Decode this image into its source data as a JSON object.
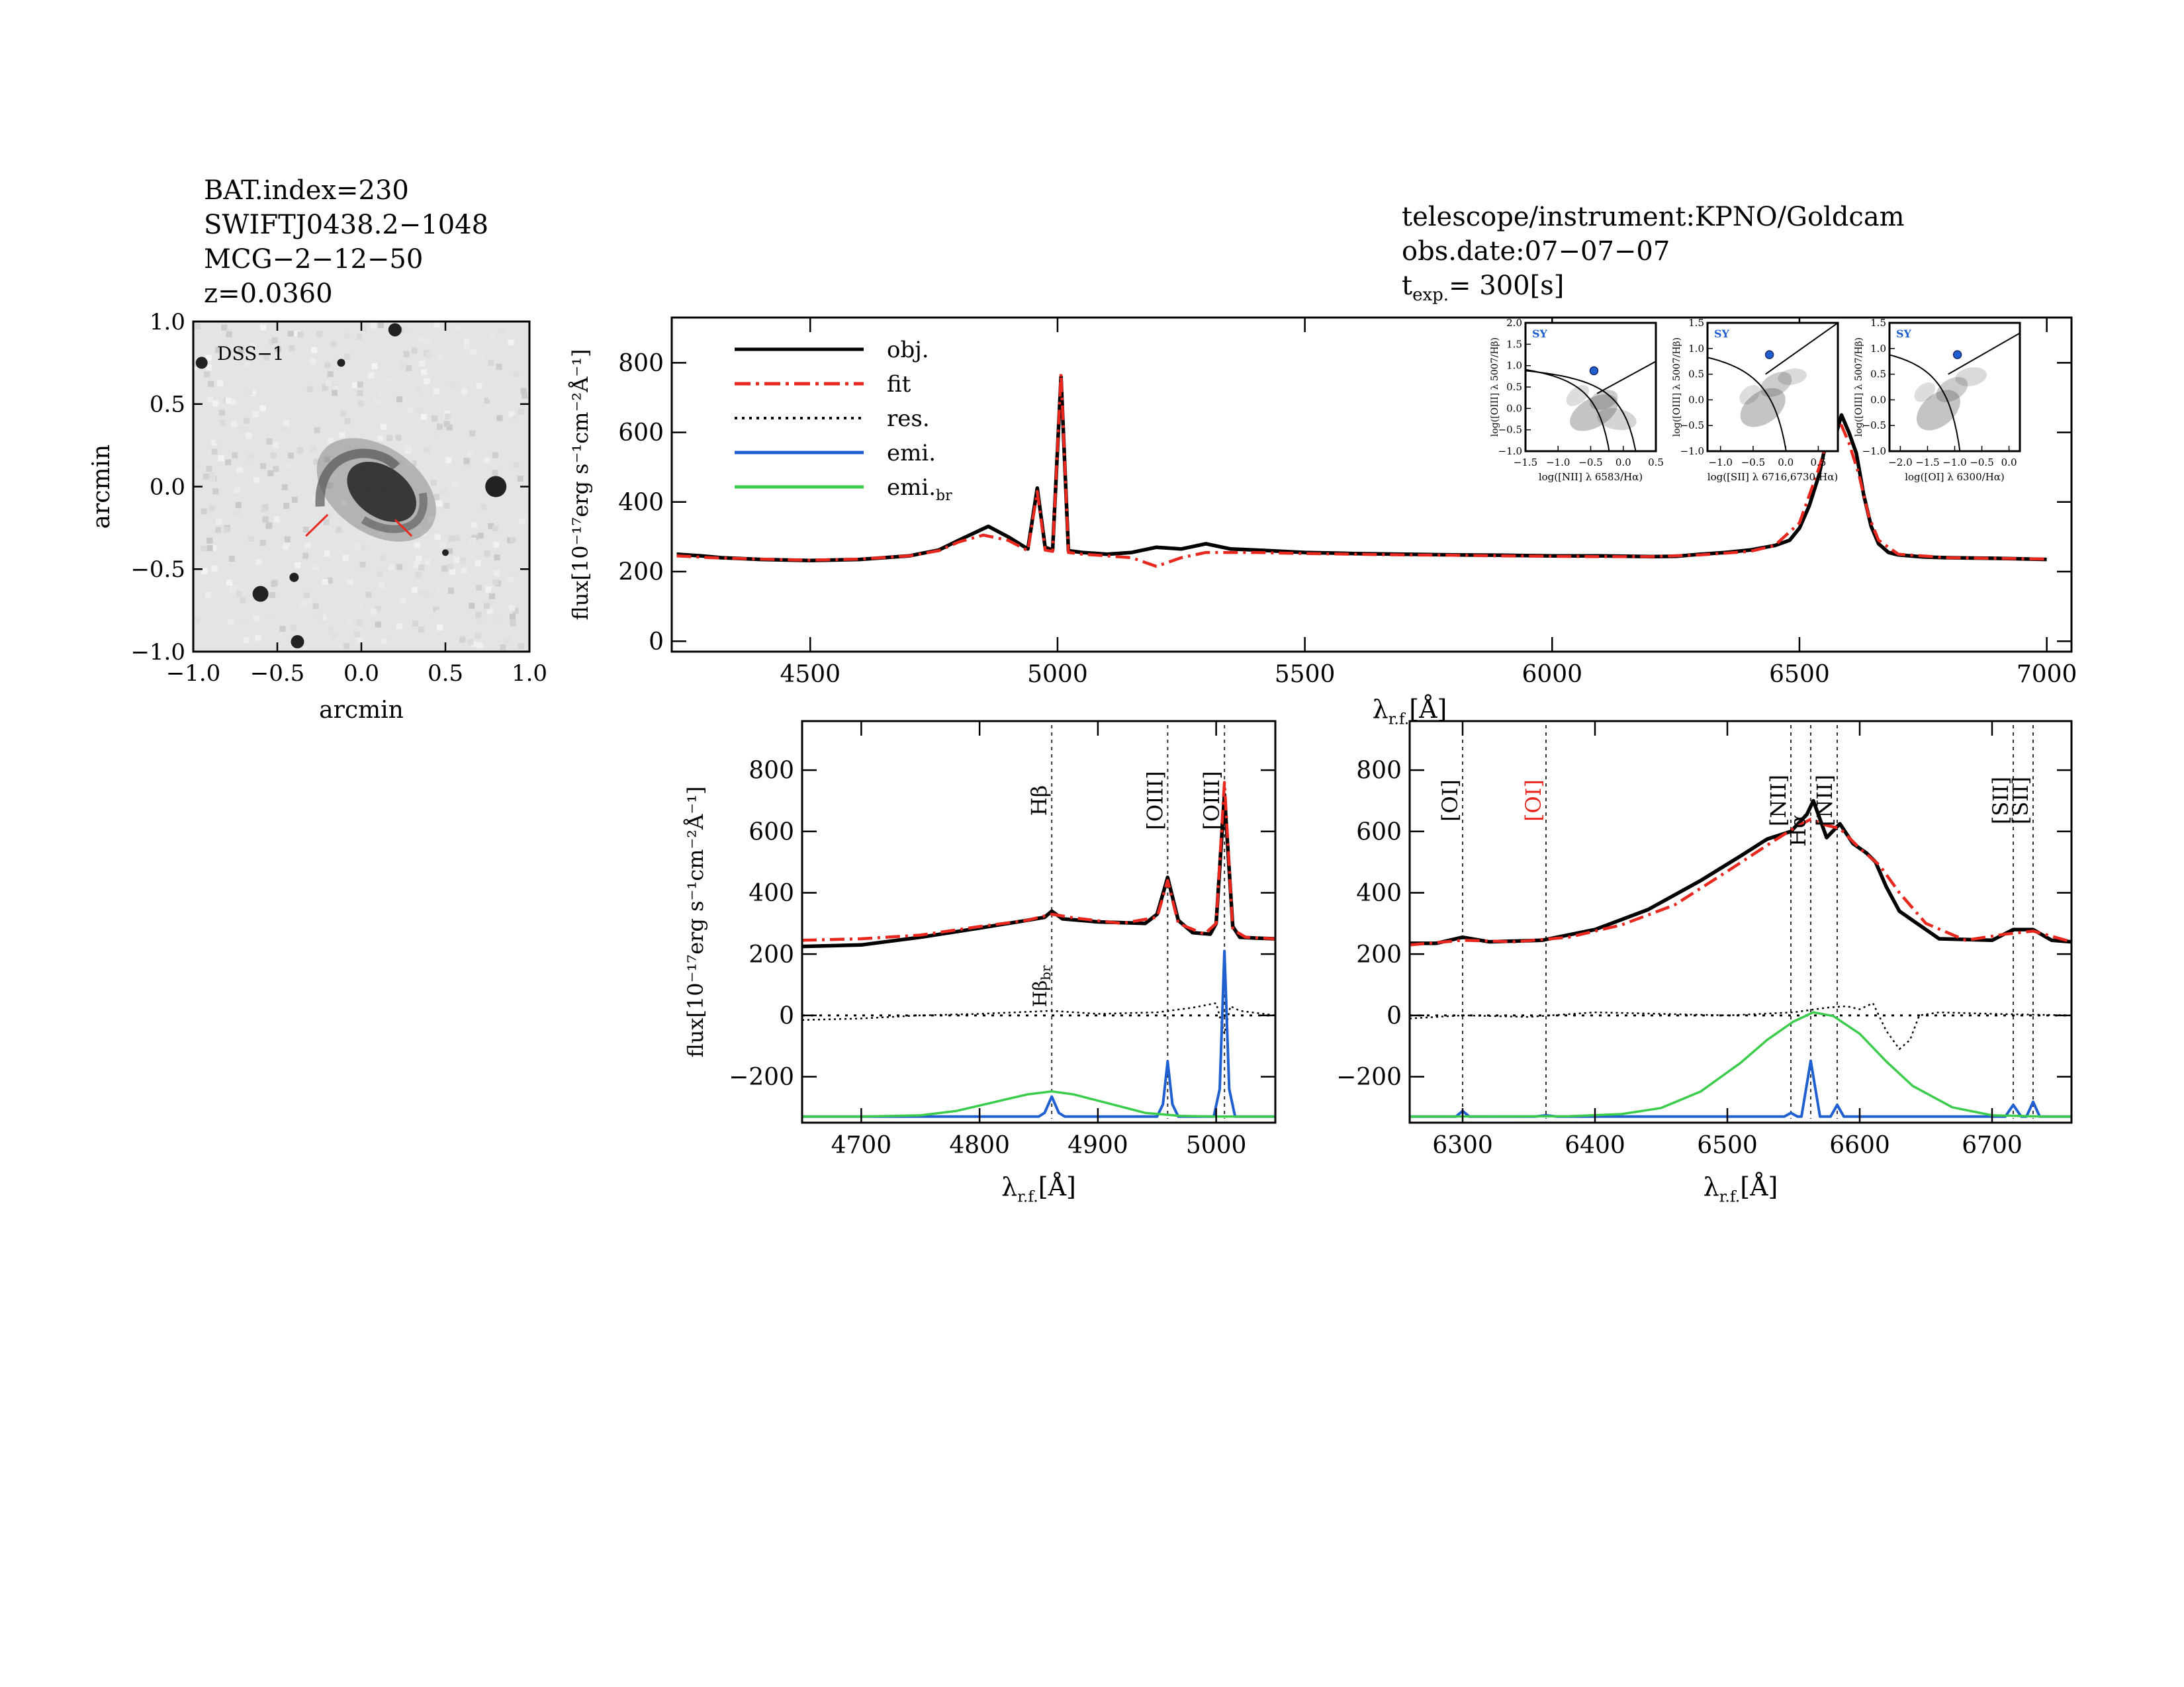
{
  "header_left": {
    "line1": "BAT.index=230",
    "line2": "SWIFTJ0438.2−1048",
    "line3": "MCG−2−12−50",
    "line4": "z=0.0360"
  },
  "header_right": {
    "line1": "telescope/instrument:KPNO/Goldcam",
    "line2": "obs.date:07−07−07",
    "line3_prefix": "t",
    "line3_sub": "exp.",
    "line3_value": "= 300[s]"
  },
  "colors": {
    "obj": "#000000",
    "fit": "#e8281e",
    "res": "#000000",
    "emi": "#1f5fd0",
    "emi_br": "#3ccc4c",
    "lines": "#333333"
  },
  "chart_data": [
    {
      "id": "image",
      "type": "heatmap",
      "label": "DSS−1",
      "xlabel": "arcmin",
      "ylabel": "arcmin",
      "xlim": [
        -1.0,
        1.0
      ],
      "ylim": [
        -1.0,
        1.0
      ],
      "xticks": [
        -1.0,
        -0.5,
        0.0,
        0.5,
        1.0
      ],
      "yticks": [
        -1.0,
        -0.5,
        0.0,
        0.5,
        1.0
      ],
      "xtick_labels": [
        "−1.0",
        "−0.5",
        "0.0",
        "0.5",
        "1.0"
      ],
      "ytick_labels": [
        "−1.0",
        "−0.5",
        "0.0",
        "0.5",
        "1.0"
      ]
    },
    {
      "id": "main",
      "type": "line",
      "xlabel_main": "λ",
      "xlabel_sub": "r.f.",
      "xlabel_unit": "[Å]",
      "ylabel": "flux[10⁻¹⁷erg s⁻¹cm⁻²Å⁻¹]",
      "xlim": [
        4220,
        7050
      ],
      "ylim": [
        -30,
        930
      ],
      "xticks": [
        4500,
        5000,
        5500,
        6000,
        6500,
        7000
      ],
      "yticks": [
        0,
        200,
        400,
        600,
        800
      ],
      "legend": {
        "placement": "top-left",
        "entries": [
          {
            "label": "obj.",
            "style": "solid",
            "color": "#000000"
          },
          {
            "label": "fit",
            "style": "dashdot",
            "color": "#e8281e"
          },
          {
            "label": "res.",
            "style": "dotted",
            "color": "#000000"
          },
          {
            "label": "emi.",
            "style": "solid",
            "color": "#1f5fd0"
          },
          {
            "label": "emi.",
            "label_sub": "br",
            "style": "solid",
            "color": "#3ccc4c"
          }
        ]
      },
      "series": [
        {
          "name": "obj.",
          "x": [
            4230,
            4280,
            4320,
            4400,
            4500,
            4600,
            4700,
            4760,
            4800,
            4830,
            4860,
            4900,
            4940,
            4959,
            4975,
            4990,
            5007,
            5022,
            5050,
            5100,
            5150,
            5200,
            5250,
            5300,
            5350,
            5400,
            5500,
            5600,
            5700,
            5800,
            5900,
            6000,
            6100,
            6200,
            6250,
            6300,
            6350,
            6400,
            6450,
            6480,
            6500,
            6520,
            6540,
            6555,
            6563,
            6575,
            6585,
            6600,
            6615,
            6630,
            6645,
            6660,
            6680,
            6700,
            6750,
            6800,
            6900,
            7000
          ],
          "y": [
            250,
            245,
            240,
            235,
            232,
            235,
            245,
            262,
            290,
            310,
            330,
            300,
            265,
            440,
            270,
            262,
            760,
            260,
            255,
            250,
            255,
            270,
            265,
            280,
            265,
            262,
            255,
            252,
            250,
            248,
            247,
            245,
            245,
            243,
            244,
            250,
            255,
            262,
            275,
            290,
            325,
            390,
            480,
            580,
            620,
            600,
            650,
            600,
            540,
            420,
            330,
            280,
            255,
            248,
            242,
            240,
            238,
            235
          ]
        },
        {
          "name": "fit",
          "x": [
            4230,
            4300,
            4400,
            4500,
            4600,
            4700,
            4760,
            4800,
            4850,
            4900,
            4940,
            4959,
            4975,
            4990,
            5007,
            5022,
            5050,
            5100,
            5150,
            5200,
            5250,
            5300,
            5400,
            5500,
            5600,
            5700,
            5800,
            5900,
            6000,
            6100,
            6200,
            6300,
            6400,
            6450,
            6500,
            6540,
            6563,
            6585,
            6600,
            6620,
            6640,
            6660,
            6700,
            6800,
            6900,
            7000
          ],
          "y": [
            245,
            240,
            236,
            233,
            236,
            245,
            260,
            285,
            305,
            290,
            260,
            430,
            262,
            258,
            770,
            255,
            250,
            245,
            240,
            215,
            240,
            255,
            255,
            252,
            250,
            248,
            247,
            245,
            244,
            243,
            243,
            248,
            258,
            275,
            340,
            500,
            610,
            620,
            570,
            480,
            360,
            290,
            250,
            240,
            238,
            236
          ]
        }
      ]
    },
    {
      "id": "hbeta",
      "type": "line",
      "xlabel_main": "λ",
      "xlabel_sub": "r.f.",
      "xlabel_unit": "[Å]",
      "ylabel": "flux[10⁻¹⁷erg s⁻¹cm⁻²Å⁻¹]",
      "xlim": [
        4650,
        5050
      ],
      "ylim": [
        -350,
        960
      ],
      "xticks": [
        4700,
        4800,
        4900,
        5000
      ],
      "yticks": [
        -200,
        0,
        200,
        400,
        600,
        800
      ],
      "line_markers": [
        {
          "x": 4861,
          "label": "Hβ",
          "color": "#000000"
        },
        {
          "x": 4959,
          "label": "[OIII]",
          "color": "#000000"
        },
        {
          "x": 5007,
          "label": "[OIII]",
          "color": "#000000"
        }
      ],
      "annotation": {
        "main": "Hβ",
        "sub": "br",
        "x": 4861,
        "y": 95
      },
      "series": [
        {
          "name": "obj.",
          "x": [
            4650,
            4700,
            4750,
            4800,
            4840,
            4855,
            4861,
            4870,
            4900,
            4940,
            4950,
            4959,
            4968,
            4980,
            4995,
            5000,
            5007,
            5014,
            5020,
            5035,
            5050
          ],
          "y": [
            225,
            230,
            255,
            285,
            310,
            320,
            340,
            315,
            305,
            300,
            330,
            450,
            310,
            270,
            265,
            300,
            720,
            290,
            255,
            252,
            250
          ]
        },
        {
          "name": "fit",
          "x": [
            4650,
            4700,
            4750,
            4800,
            4840,
            4861,
            4880,
            4920,
            4950,
            4959,
            4968,
            4990,
            5000,
            5007,
            5014,
            5025,
            5050
          ],
          "y": [
            245,
            250,
            262,
            290,
            310,
            330,
            318,
            300,
            320,
            440,
            300,
            265,
            300,
            760,
            280,
            255,
            250
          ]
        },
        {
          "name": "res.",
          "x": [
            4650,
            4700,
            4750,
            4800,
            4861,
            4900,
            4950,
            4980,
            5000,
            5007,
            5012,
            5020,
            5050
          ],
          "y": [
            -15,
            -10,
            0,
            5,
            15,
            5,
            10,
            25,
            40,
            -60,
            30,
            15,
            0
          ]
        },
        {
          "name": "emi.",
          "x": [
            4650,
            4850,
            4855,
            4861,
            4867,
            4872,
            4950,
            4955,
            4959,
            4963,
            4968,
            4998,
            5003,
            5007,
            5011,
            5016,
            5050
          ],
          "y": [
            -330,
            -330,
            -318,
            -265,
            -318,
            -330,
            -330,
            -290,
            -150,
            -290,
            -330,
            -330,
            -240,
            210,
            -240,
            -330,
            -330
          ]
        },
        {
          "name": "emi.br",
          "x": [
            4650,
            4700,
            4750,
            4780,
            4810,
            4840,
            4861,
            4880,
            4910,
            4940,
            4970,
            5000,
            5050
          ],
          "y": [
            -330,
            -330,
            -326,
            -312,
            -285,
            -258,
            -248,
            -258,
            -288,
            -318,
            -328,
            -330,
            -330
          ]
        }
      ]
    },
    {
      "id": "halpha",
      "type": "line",
      "xlabel_main": "λ",
      "xlabel_sub": "r.f.",
      "xlabel_unit": "[Å]",
      "xlim": [
        6260,
        6760
      ],
      "ylim": [
        -350,
        960
      ],
      "xticks": [
        6300,
        6400,
        6500,
        6600,
        6700
      ],
      "yticks": [
        -200,
        0,
        200,
        400,
        600,
        800
      ],
      "line_markers": [
        {
          "x": 6300,
          "label": "[OI]",
          "color": "#000000"
        },
        {
          "x": 6363,
          "label": "[OI]",
          "color": "#e8281e"
        },
        {
          "x": 6548,
          "label": "[NII]",
          "color": "#000000"
        },
        {
          "x": 6563,
          "label": "Hα",
          "color": "#000000"
        },
        {
          "x": 6583,
          "label": "[NII]",
          "color": "#000000"
        },
        {
          "x": 6716,
          "label": "[SII]",
          "color": "#000000"
        },
        {
          "x": 6731,
          "label": "[SII]",
          "color": "#000000"
        }
      ],
      "series": [
        {
          "name": "obj.",
          "x": [
            6260,
            6280,
            6300,
            6320,
            6360,
            6400,
            6440,
            6480,
            6510,
            6530,
            6548,
            6560,
            6565,
            6575,
            6585,
            6595,
            6605,
            6612,
            6620,
            6630,
            6640,
            6660,
            6700,
            6716,
            6731,
            6745,
            6760
          ],
          "y": [
            235,
            235,
            255,
            240,
            245,
            280,
            345,
            440,
            520,
            575,
            600,
            655,
            700,
            580,
            625,
            560,
            530,
            500,
            420,
            340,
            310,
            250,
            245,
            280,
            280,
            245,
            240
          ]
        },
        {
          "name": "fit",
          "x": [
            6260,
            6300,
            6340,
            6380,
            6420,
            6460,
            6500,
            6530,
            6550,
            6563,
            6575,
            6585,
            6600,
            6615,
            6630,
            6650,
            6680,
            6710,
            6731,
            6760
          ],
          "y": [
            230,
            245,
            240,
            255,
            295,
            360,
            470,
            555,
            610,
            640,
            620,
            610,
            545,
            490,
            400,
            300,
            245,
            265,
            275,
            240
          ]
        },
        {
          "name": "res.",
          "x": [
            6260,
            6300,
            6350,
            6400,
            6450,
            6500,
            6550,
            6575,
            6590,
            6600,
            6610,
            6620,
            6630,
            6638,
            6645,
            6660,
            6700,
            6760
          ],
          "y": [
            -10,
            0,
            -5,
            10,
            5,
            0,
            10,
            25,
            30,
            20,
            40,
            -50,
            -110,
            -80,
            0,
            10,
            5,
            0
          ]
        },
        {
          "name": "emi.",
          "x": [
            6260,
            6295,
            6300,
            6305,
            6355,
            6363,
            6371,
            6543,
            6548,
            6553,
            6556,
            6563,
            6570,
            6578,
            6583,
            6588,
            6710,
            6716,
            6722,
            6726,
            6731,
            6736,
            6760
          ],
          "y": [
            -330,
            -330,
            -312,
            -330,
            -330,
            -326,
            -330,
            -330,
            -318,
            -330,
            -330,
            -148,
            -330,
            -330,
            -292,
            -330,
            -330,
            -292,
            -330,
            -330,
            -282,
            -330,
            -330
          ]
        },
        {
          "name": "emi.br",
          "x": [
            6260,
            6380,
            6420,
            6450,
            6480,
            6510,
            6530,
            6550,
            6565,
            6580,
            6600,
            6620,
            6640,
            6670,
            6700,
            6740,
            6760
          ],
          "y": [
            -330,
            -329,
            -322,
            -302,
            -248,
            -155,
            -80,
            -20,
            10,
            -2,
            -60,
            -150,
            -230,
            -300,
            -326,
            -330,
            -330
          ]
        }
      ]
    },
    {
      "id": "bpt_nii",
      "type": "scatter",
      "tag": "SY",
      "xlabel": "log([NII] λ 6583/Hα)",
      "ylabel": "log([OIII] λ 5007/Hβ)",
      "xlim": [
        -1.5,
        0.5
      ],
      "ylim": [
        -1.0,
        2.0
      ],
      "xticks": [
        -1.5,
        -1.0,
        -0.5,
        0.0,
        0.5
      ],
      "yticks": [
        -1.0,
        -0.5,
        0.0,
        0.5,
        1.0,
        1.5,
        2.0
      ],
      "xtick_labels": [
        "−1.5",
        "−1.0",
        "−0.5",
        "0.0",
        "0.5"
      ],
      "ytick_labels": [
        "−1.0",
        "−0.5",
        "0.0",
        "0.5",
        "1.0",
        "1.5",
        "2.0"
      ],
      "points": [
        {
          "x": -0.45,
          "y": 0.88
        }
      ]
    },
    {
      "id": "bpt_sii",
      "type": "scatter",
      "tag": "SY",
      "xlabel": "log([SII] λ 6716,6730/Hα)",
      "ylabel": "log([OIII] λ 5007/Hβ)",
      "xlim": [
        -1.2,
        0.8
      ],
      "ylim": [
        -1.0,
        1.5
      ],
      "xticks": [
        -1.0,
        -0.5,
        0.0,
        0.5
      ],
      "yticks": [
        -1.0,
        -0.5,
        0.0,
        0.5,
        1.0,
        1.5
      ],
      "xtick_labels": [
        "−1.0",
        "−0.5",
        "0.0",
        "0.5"
      ],
      "ytick_labels": [
        "−1.0",
        "−0.5",
        "0.0",
        "0.5",
        "1.0",
        "1.5"
      ],
      "points": [
        {
          "x": -0.25,
          "y": 0.88
        }
      ]
    },
    {
      "id": "bpt_oi",
      "type": "scatter",
      "tag": "SY",
      "xlabel": "log([OI] λ 6300/Hα)",
      "ylabel": "log([OIII] λ 5007/Hβ)",
      "xlim": [
        -2.2,
        0.2
      ],
      "ylim": [
        -1.0,
        1.5
      ],
      "xticks": [
        -2.0,
        -1.5,
        -1.0,
        -0.5,
        0.0
      ],
      "yticks": [
        -1.0,
        -0.5,
        0.0,
        0.5,
        1.0,
        1.5
      ],
      "xtick_labels": [
        "−2.0",
        "−1.5",
        "−1.0",
        "−0.5",
        "0.0"
      ],
      "ytick_labels": [
        "−1.0",
        "−0.5",
        "0.0",
        "0.5",
        "1.0",
        "1.5"
      ],
      "points": [
        {
          "x": -0.95,
          "y": 0.88
        }
      ]
    }
  ]
}
